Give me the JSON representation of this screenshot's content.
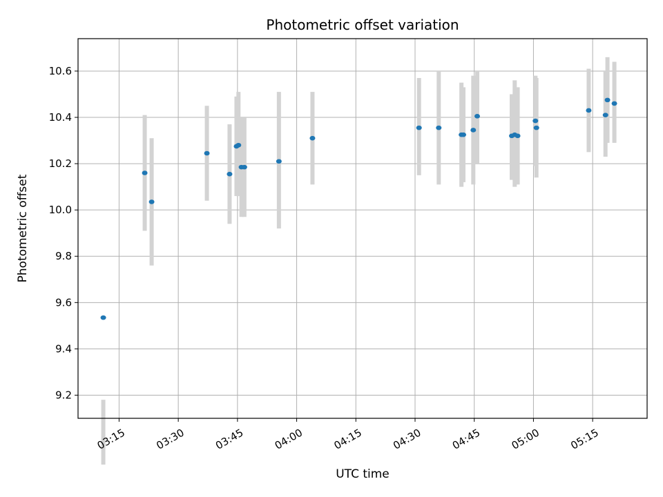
{
  "chart_data": {
    "type": "scatter",
    "title": "Photometric offset variation",
    "xlabel": "UTC time",
    "ylabel": "Photometric offset",
    "x_ticks": [
      "03:15",
      "03:30",
      "03:45",
      "04:00",
      "04:15",
      "04:30",
      "04:45",
      "05:00",
      "05:15"
    ],
    "y_ticks": [
      "9.2",
      "9.4",
      "9.6",
      "9.8",
      "10.0",
      "10.2",
      "10.4",
      "10.6"
    ],
    "xlim": [
      "03:04:36",
      "05:28:48"
    ],
    "ylim": [
      9.1,
      10.74
    ],
    "grid": true,
    "errorbar_color": "#d3d3d3",
    "point_color": "#1f77b4",
    "points": [
      {
        "time": "03:11:00",
        "y": 9.535,
        "err_low": 9.18,
        "err_high": 8.9
      },
      {
        "time": "03:21:30",
        "y": 10.16,
        "err_low": 9.91,
        "err_high": 10.41
      },
      {
        "time": "03:23:15",
        "y": 10.035,
        "err_low": 9.76,
        "err_high": 10.31
      },
      {
        "time": "03:37:15",
        "y": 10.245,
        "err_low": 10.04,
        "err_high": 10.45
      },
      {
        "time": "03:43:00",
        "y": 10.155,
        "err_low": 9.94,
        "err_high": 10.37
      },
      {
        "time": "03:44:45",
        "y": 10.275,
        "err_low": 10.06,
        "err_high": 10.49
      },
      {
        "time": "03:45:15",
        "y": 10.28,
        "err_low": 10.06,
        "err_high": 10.51
      },
      {
        "time": "03:46:00",
        "y": 10.185,
        "err_low": 9.97,
        "err_high": 10.4
      },
      {
        "time": "03:46:45",
        "y": 10.185,
        "err_low": 9.97,
        "err_high": 10.4
      },
      {
        "time": "03:55:30",
        "y": 10.21,
        "err_low": 9.92,
        "err_high": 10.51
      },
      {
        "time": "04:04:00",
        "y": 10.31,
        "err_low": 10.11,
        "err_high": 10.51
      },
      {
        "time": "04:31:00",
        "y": 10.355,
        "err_low": 10.15,
        "err_high": 10.57
      },
      {
        "time": "04:36:00",
        "y": 10.355,
        "err_low": 10.11,
        "err_high": 10.6
      },
      {
        "time": "04:41:45",
        "y": 10.325,
        "err_low": 10.1,
        "err_high": 10.55
      },
      {
        "time": "04:42:15",
        "y": 10.325,
        "err_low": 10.12,
        "err_high": 10.53
      },
      {
        "time": "04:44:45",
        "y": 10.345,
        "err_low": 10.11,
        "err_high": 10.58
      },
      {
        "time": "04:45:45",
        "y": 10.405,
        "err_low": 10.2,
        "err_high": 10.6
      },
      {
        "time": "04:54:30",
        "y": 10.32,
        "err_low": 10.13,
        "err_high": 10.5
      },
      {
        "time": "04:55:15",
        "y": 10.325,
        "err_low": 10.1,
        "err_high": 10.56
      },
      {
        "time": "04:56:00",
        "y": 10.32,
        "err_low": 10.11,
        "err_high": 10.53
      },
      {
        "time": "05:00:30",
        "y": 10.385,
        "err_low": 10.19,
        "err_high": 10.58
      },
      {
        "time": "05:00:45",
        "y": 10.355,
        "err_low": 10.14,
        "err_high": 10.57
      },
      {
        "time": "05:14:00",
        "y": 10.43,
        "err_low": 10.25,
        "err_high": 10.61
      },
      {
        "time": "05:18:15",
        "y": 10.41,
        "err_low": 10.23,
        "err_high": 10.6
      },
      {
        "time": "05:18:45",
        "y": 10.475,
        "err_low": 10.29,
        "err_high": 10.66
      },
      {
        "time": "05:20:30",
        "y": 10.46,
        "err_low": 10.29,
        "err_high": 10.64
      }
    ]
  }
}
